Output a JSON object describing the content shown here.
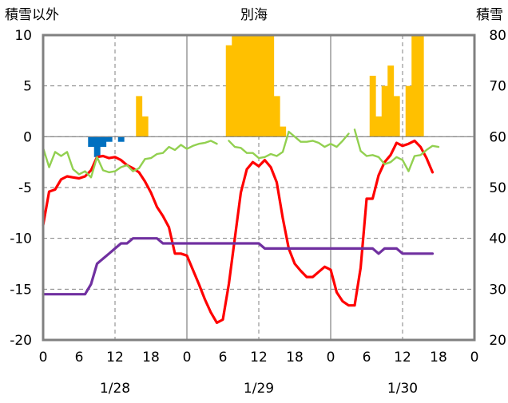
{
  "chart_data": {
    "type": "line",
    "title": "別海",
    "left_axis_label": "積雪以外",
    "right_axis_label": "積雪",
    "left_ylim": [
      -20,
      10
    ],
    "right_ylim": [
      20,
      80
    ],
    "left_ticks": [
      "10",
      "5",
      "0",
      "-5",
      "-10",
      "-15",
      "-20"
    ],
    "right_ticks": [
      "80",
      "70",
      "60",
      "50",
      "40",
      "30",
      "20"
    ],
    "x_range_hours": [
      0,
      72
    ],
    "x_tick_labels": [
      "0",
      "6",
      "12",
      "18",
      "0",
      "6",
      "12",
      "18",
      "0",
      "6",
      "12",
      "18",
      "0"
    ],
    "date_labels": [
      "1/28",
      "1/29",
      "1/30"
    ],
    "grid": true,
    "colors": {
      "temperature": "#ff0000",
      "dew_point": "#92d050",
      "snow_depth": "#7030a0",
      "snowfall": "#ffc000",
      "precip_negative": "#0070c0",
      "grid": "#808080",
      "frame": "#808080"
    },
    "series": [
      {
        "key": "temperature",
        "values": [
          [
            0,
            -8.7
          ],
          [
            1,
            -5.4
          ],
          [
            2,
            -5.2
          ],
          [
            3,
            -4.2
          ],
          [
            4,
            -3.9
          ],
          [
            5,
            -4.0
          ],
          [
            6,
            -4.1
          ],
          [
            7,
            -3.9
          ],
          [
            8,
            -3.3
          ],
          [
            9,
            -2.0
          ],
          [
            10,
            -1.9
          ],
          [
            11,
            -2.1
          ],
          [
            12,
            -2.0
          ],
          [
            13,
            -2.3
          ],
          [
            14,
            -2.8
          ],
          [
            15,
            -3.1
          ],
          [
            16,
            -3.5
          ],
          [
            17,
            -4.4
          ],
          [
            18,
            -5.5
          ],
          [
            19,
            -6.9
          ],
          [
            20,
            -7.8
          ],
          [
            21,
            -8.9
          ],
          [
            22,
            -11.5
          ],
          [
            23,
            -11.5
          ],
          [
            24,
            -11.7
          ],
          [
            25,
            -13.1
          ],
          [
            26,
            -14.5
          ],
          [
            27,
            -16.0
          ],
          [
            28,
            -17.3
          ],
          [
            29,
            -18.3
          ],
          [
            30,
            -18.0
          ],
          [
            31,
            -14.5
          ],
          [
            32,
            -10.0
          ],
          [
            33,
            -5.5
          ],
          [
            34,
            -3.2
          ],
          [
            35,
            -2.5
          ],
          [
            36,
            -2.9
          ],
          [
            37,
            -2.3
          ],
          [
            38,
            -3.0
          ],
          [
            39,
            -4.5
          ],
          [
            40,
            -8.0
          ],
          [
            41,
            -11.0
          ],
          [
            42,
            -12.5
          ],
          [
            43,
            -13.2
          ],
          [
            44,
            -13.8
          ],
          [
            45,
            -13.8
          ],
          [
            46,
            -13.3
          ],
          [
            47,
            -12.8
          ],
          [
            48,
            -13.1
          ],
          [
            49,
            -15.3
          ],
          [
            50,
            -16.2
          ],
          [
            51,
            -16.6
          ],
          [
            52,
            -16.6
          ],
          [
            53,
            -12.9
          ],
          [
            54,
            -6.1
          ],
          [
            55,
            -6.1
          ],
          [
            56,
            -3.8
          ],
          [
            57,
            -2.5
          ],
          [
            58,
            -1.8
          ],
          [
            59,
            -0.6
          ],
          [
            60,
            -0.9
          ],
          [
            61,
            -0.7
          ],
          [
            62,
            -0.4
          ],
          [
            63,
            -1.0
          ],
          [
            64,
            -2.1
          ],
          [
            65,
            -3.5
          ]
        ]
      },
      {
        "key": "dew_point",
        "values": [
          [
            0,
            -1.1
          ],
          [
            1,
            -3.0
          ],
          [
            2,
            -1.5
          ],
          [
            3,
            -1.9
          ],
          [
            4,
            -1.5
          ],
          [
            5,
            -3.2
          ],
          [
            6,
            -3.7
          ],
          [
            7,
            -3.4
          ],
          [
            8,
            -4.0
          ],
          [
            9,
            -2.0
          ],
          [
            10,
            -3.3
          ],
          [
            11,
            -3.5
          ],
          [
            12,
            -3.4
          ],
          [
            13,
            -3.0
          ],
          [
            14,
            -2.8
          ],
          [
            15,
            -3.4
          ],
          [
            16,
            -3.1
          ],
          [
            17,
            -2.2
          ],
          [
            18,
            -2.1
          ],
          [
            19,
            -1.7
          ],
          [
            20,
            -1.6
          ],
          [
            21,
            -1.0
          ],
          [
            22,
            -1.3
          ],
          [
            23,
            -0.8
          ],
          [
            24,
            -1.2
          ],
          [
            25,
            -0.9
          ],
          [
            26,
            -0.7
          ],
          [
            27,
            -0.6
          ],
          [
            28,
            -0.4
          ],
          [
            29,
            -0.7
          ],
          null,
          [
            31,
            -0.4
          ],
          [
            32,
            -1.0
          ],
          [
            33,
            -1.1
          ],
          [
            34,
            -1.6
          ],
          [
            35,
            -1.6
          ],
          [
            36,
            -2.1
          ],
          [
            37,
            -2.0
          ],
          [
            38,
            -1.7
          ],
          [
            39,
            -1.9
          ],
          [
            40,
            -1.5
          ],
          [
            41,
            0.5
          ],
          [
            42,
            0.0
          ],
          [
            43,
            -0.5
          ],
          [
            44,
            -0.5
          ],
          [
            45,
            -0.4
          ],
          [
            46,
            -0.6
          ],
          [
            47,
            -1.0
          ],
          [
            48,
            -0.7
          ],
          [
            49,
            -1.0
          ],
          [
            50,
            -0.4
          ],
          [
            51,
            0.3
          ],
          null,
          [
            52,
            0.7
          ],
          [
            53,
            -1.4
          ],
          [
            54,
            -1.9
          ],
          [
            55,
            -1.8
          ],
          [
            56,
            -2.0
          ],
          [
            57,
            -2.7
          ],
          [
            58,
            -2.5
          ],
          [
            59,
            -2.0
          ],
          [
            60,
            -2.3
          ],
          [
            61,
            -3.4
          ],
          [
            62,
            -1.9
          ],
          [
            63,
            -1.8
          ],
          [
            64,
            -1.3
          ],
          [
            65,
            -0.9
          ],
          [
            66,
            -1.0
          ]
        ]
      },
      {
        "key": "snow_depth",
        "values": [
          [
            0,
            29
          ],
          [
            7,
            29
          ],
          [
            8,
            31
          ],
          [
            9,
            35
          ],
          [
            10,
            36
          ],
          [
            11,
            37
          ],
          [
            12,
            38
          ],
          [
            13,
            39
          ],
          [
            14,
            39
          ],
          [
            15,
            40
          ],
          [
            16,
            40
          ],
          [
            17,
            40
          ],
          [
            18,
            40
          ],
          [
            19,
            40
          ],
          [
            20,
            39
          ],
          [
            36,
            39
          ],
          [
            37,
            38
          ],
          [
            55,
            38
          ],
          [
            56,
            37
          ],
          [
            57,
            38
          ],
          [
            58,
            38
          ],
          [
            59,
            38
          ],
          [
            60,
            37
          ],
          [
            65,
            37
          ]
        ]
      }
    ],
    "snowfall_bars": [
      {
        "x": 16,
        "value": 4
      },
      {
        "x": 17,
        "value": 2
      },
      {
        "x": 31,
        "value": 9
      },
      {
        "x": 32,
        "value": 10
      },
      {
        "x": 33,
        "value": 10
      },
      {
        "x": 34,
        "value": 10
      },
      {
        "x": 35,
        "value": 10
      },
      {
        "x": 36,
        "value": 10
      },
      {
        "x": 37,
        "value": 10
      },
      {
        "x": 38,
        "value": 10
      },
      {
        "x": 39,
        "value": 4
      },
      {
        "x": 40,
        "value": 1
      },
      {
        "x": 55,
        "value": 6
      },
      {
        "x": 56,
        "value": 2
      },
      {
        "x": 57,
        "value": 5
      },
      {
        "x": 58,
        "value": 7
      },
      {
        "x": 59,
        "value": 4
      },
      {
        "x": 61,
        "value": 5
      },
      {
        "x": 62,
        "value": 10
      },
      {
        "x": 63,
        "value": 10
      }
    ],
    "negative_bars": [
      {
        "x": 8,
        "value": -1
      },
      {
        "x": 9,
        "value": -2
      },
      {
        "x": 10,
        "value": -1
      },
      {
        "x": 11,
        "value": -0.5
      },
      {
        "x": 13,
        "value": -0.5
      }
    ]
  }
}
